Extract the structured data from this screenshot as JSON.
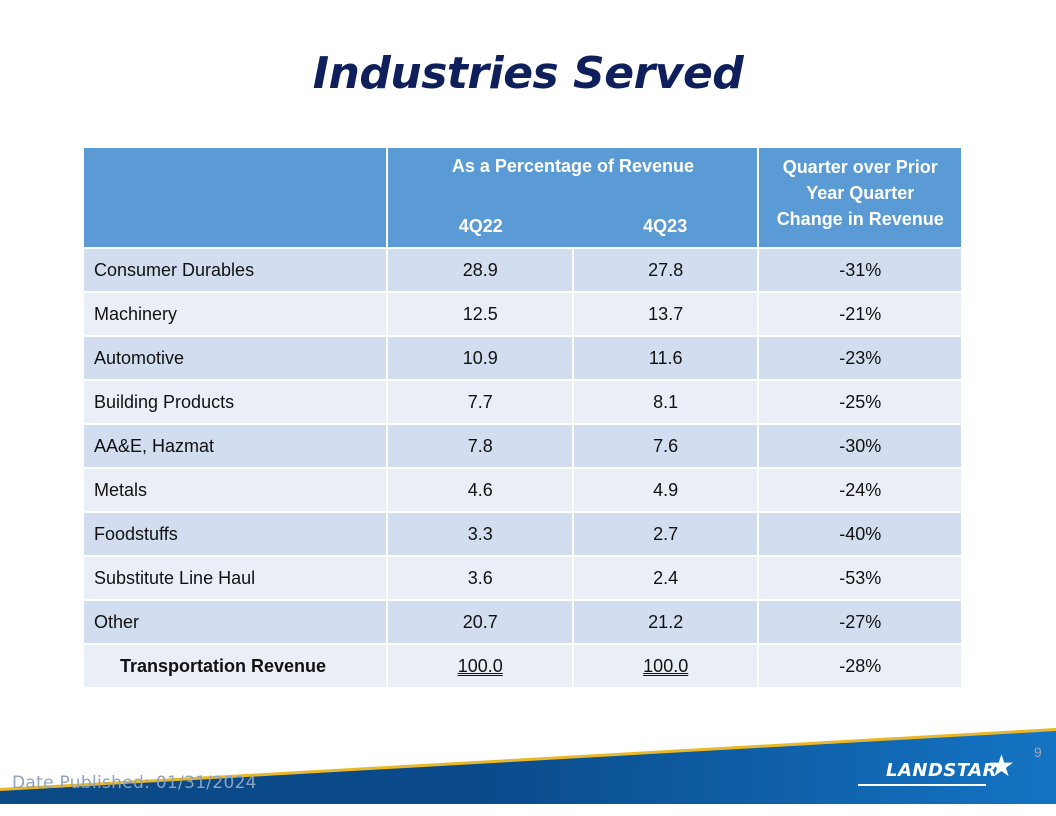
{
  "page": {
    "title": "Industries Served",
    "page_number": "9",
    "date_published": "Date Published:  01/31/2024",
    "logo_text": "LANDSTAR",
    "logo_icon": "star-icon"
  },
  "table": {
    "header": {
      "group_title": "As a Percentage of Revenue",
      "quarters": [
        "4Q22",
        "4Q23"
      ],
      "change_line1": "Quarter over Prior",
      "change_line2": "Year Quarter",
      "change_line3": "Change in Revenue"
    },
    "rows": [
      {
        "industry": "Consumer Durables",
        "q4_22": "28.9",
        "q4_23": "27.8",
        "change": "-31%"
      },
      {
        "industry": "Machinery",
        "q4_22": "12.5",
        "q4_23": "13.7",
        "change": "-21%"
      },
      {
        "industry": "Automotive",
        "q4_22": "10.9",
        "q4_23": "11.6",
        "change": "-23%"
      },
      {
        "industry": "Building Products",
        "q4_22": "7.7",
        "q4_23": "8.1",
        "change": "-25%"
      },
      {
        "industry": "AA&E, Hazmat",
        "q4_22": "7.8",
        "q4_23": "7.6",
        "change": "-30%"
      },
      {
        "industry": "Metals",
        "q4_22": "4.6",
        "q4_23": "4.9",
        "change": "-24%"
      },
      {
        "industry": "Foodstuffs",
        "q4_22": "3.3",
        "q4_23": "2.7",
        "change": "-40%"
      },
      {
        "industry": "Substitute Line Haul",
        "q4_22": "3.6",
        "q4_23": "2.4",
        "change": "-53%"
      },
      {
        "industry": "Other",
        "q4_22": "20.7",
        "q4_23": "21.2",
        "change": "-27%"
      }
    ],
    "total": {
      "industry": "Transportation Revenue",
      "q4_22": "100.0",
      "q4_23": "100.0",
      "change": "-28%"
    }
  },
  "colors": {
    "title": "#0f1f5c",
    "header_bg": "#5b9bd5",
    "row_odd": "#d2deef",
    "row_even": "#eaeff7",
    "footer_blue": "#0a4c8c",
    "footer_accent": "#e8b829"
  }
}
